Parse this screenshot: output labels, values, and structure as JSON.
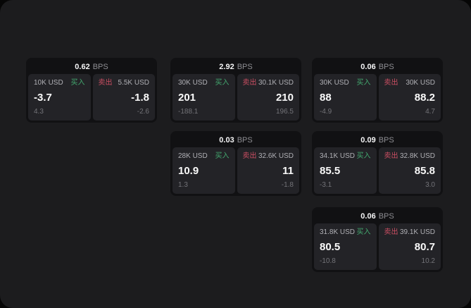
{
  "labels": {
    "buy": "买入",
    "sell": "卖出",
    "bps": "BPS"
  },
  "colors": {
    "panel_bg": "#1c1c1e",
    "card_bg": "#111113",
    "pane_bg": "#232327",
    "buy_green": "#43a86f",
    "sell_red": "#cc4f63",
    "primary_text": "#fafafa",
    "muted_text": "#737378"
  },
  "cards": [
    {
      "bps": "0.62",
      "col": 0,
      "row": 0,
      "buy": {
        "amount": "10K USD",
        "price": "-3.7",
        "sub": "4.3"
      },
      "sell": {
        "amount": "5.5K USD",
        "price": "-1.8",
        "sub": "-2.6"
      }
    },
    {
      "bps": "2.92",
      "col": 1,
      "row": 0,
      "buy": {
        "amount": "30K USD",
        "price": "201",
        "sub": "-188.1"
      },
      "sell": {
        "amount": "30.1K USD",
        "price": "210",
        "sub": "196.5"
      }
    },
    {
      "bps": "0.06",
      "col": 2,
      "row": 0,
      "buy": {
        "amount": "30K USD",
        "price": "88",
        "sub": "-4.9"
      },
      "sell": {
        "amount": "30K USD",
        "price": "88.2",
        "sub": "4.7"
      }
    },
    {
      "bps": "0.03",
      "col": 1,
      "row": 1,
      "buy": {
        "amount": "28K USD",
        "price": "10.9",
        "sub": "1.3"
      },
      "sell": {
        "amount": "32.6K USD",
        "price": "11",
        "sub": "-1.8"
      }
    },
    {
      "bps": "0.09",
      "col": 2,
      "row": 1,
      "buy": {
        "amount": "34.1K USD",
        "price": "85.5",
        "sub": "-3.1"
      },
      "sell": {
        "amount": "32.8K USD",
        "price": "85.8",
        "sub": "3.0"
      }
    },
    {
      "bps": "0.06",
      "col": 2,
      "row": 2,
      "buy": {
        "amount": "31.8K USD",
        "price": "80.5",
        "sub": "-10.8"
      },
      "sell": {
        "amount": "39.1K USD",
        "price": "80.7",
        "sub": "10.2"
      }
    }
  ]
}
